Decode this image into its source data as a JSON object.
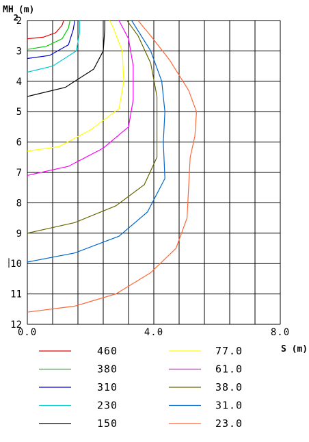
{
  "chart_data": {
    "type": "line",
    "title": "",
    "xlabel": "S(m)",
    "ylabel": "MH (m)",
    "ylabel_subscript": "2",
    "xlim": [
      0,
      8
    ],
    "ylim": [
      2,
      12
    ],
    "y_inverted": true,
    "grid": true,
    "x_ticks": [
      "0.0",
      "4.0",
      "8.0"
    ],
    "y_ticks": [
      "2",
      "3",
      "4",
      "5",
      "6",
      "7",
      "8",
      "9",
      "10",
      "11",
      "12"
    ],
    "legend_placement": "bottom",
    "series": [
      {
        "name": "460",
        "color": "#e00000",
        "points": [
          [
            0,
            2.6
          ],
          [
            0.5,
            2.55
          ],
          [
            0.9,
            2.4
          ],
          [
            1.1,
            2.15
          ],
          [
            1.15,
            2.0
          ]
        ]
      },
      {
        "name": "380",
        "color": "#00cc00",
        "points": [
          [
            0,
            2.95
          ],
          [
            0.6,
            2.85
          ],
          [
            1.1,
            2.6
          ],
          [
            1.3,
            2.25
          ],
          [
            1.35,
            2.0
          ]
        ]
      },
      {
        "name": "310",
        "color": "#0000cc",
        "points": [
          [
            0,
            3.25
          ],
          [
            0.7,
            3.15
          ],
          [
            1.3,
            2.8
          ],
          [
            1.45,
            2.3
          ],
          [
            1.5,
            2.0
          ]
        ]
      },
      {
        "name": "230",
        "color": "#00cccc",
        "points": [
          [
            0,
            3.7
          ],
          [
            0.8,
            3.5
          ],
          [
            1.55,
            3.0
          ],
          [
            1.65,
            2.4
          ],
          [
            1.65,
            2.0
          ]
        ]
      },
      {
        "name": "150",
        "color": "#000000",
        "points": [
          [
            0,
            4.5
          ],
          [
            1.2,
            4.2
          ],
          [
            2.1,
            3.6
          ],
          [
            2.4,
            3.0
          ],
          [
            2.45,
            2.3
          ],
          [
            2.45,
            2.0
          ]
        ]
      },
      {
        "name": "77.0",
        "color": "#ffff00",
        "points": [
          [
            0,
            6.3
          ],
          [
            1.0,
            6.15
          ],
          [
            2.0,
            5.6
          ],
          [
            2.9,
            4.9
          ],
          [
            3.05,
            4.0
          ],
          [
            3.0,
            3.0
          ],
          [
            2.7,
            2.2
          ],
          [
            2.6,
            2.0
          ]
        ]
      },
      {
        "name": "61.0",
        "color": "#ff00ff",
        "points": [
          [
            0,
            7.1
          ],
          [
            1.3,
            6.8
          ],
          [
            2.4,
            6.2
          ],
          [
            3.2,
            5.5
          ],
          [
            3.35,
            4.6
          ],
          [
            3.35,
            3.5
          ],
          [
            3.2,
            2.6
          ],
          [
            2.9,
            2.0
          ]
        ]
      },
      {
        "name": "38.0",
        "color": "#666600",
        "points": [
          [
            0,
            9.0
          ],
          [
            1.5,
            8.65
          ],
          [
            2.8,
            8.1
          ],
          [
            3.7,
            7.4
          ],
          [
            4.1,
            6.5
          ],
          [
            4.1,
            5.5
          ],
          [
            4.1,
            4.5
          ],
          [
            3.9,
            3.4
          ],
          [
            3.5,
            2.5
          ],
          [
            3.15,
            2.0
          ]
        ]
      },
      {
        "name": "31.0",
        "color": "#0066cc",
        "points": [
          [
            0,
            9.95
          ],
          [
            1.5,
            9.65
          ],
          [
            2.9,
            9.1
          ],
          [
            3.8,
            8.3
          ],
          [
            4.35,
            7.2
          ],
          [
            4.3,
            6.0
          ],
          [
            4.35,
            5.0
          ],
          [
            4.25,
            4.0
          ],
          [
            3.9,
            3.0
          ],
          [
            3.3,
            2.0
          ]
        ]
      },
      {
        "name": "23.0",
        "color": "#ff6633",
        "points": [
          [
            0,
            11.6
          ],
          [
            1.5,
            11.4
          ],
          [
            2.8,
            11.0
          ],
          [
            3.9,
            10.3
          ],
          [
            4.7,
            9.5
          ],
          [
            5.05,
            8.5
          ],
          [
            5.1,
            7.5
          ],
          [
            5.15,
            6.5
          ],
          [
            5.3,
            5.8
          ],
          [
            5.35,
            5.0
          ],
          [
            5.1,
            4.3
          ],
          [
            4.5,
            3.3
          ],
          [
            3.9,
            2.5
          ],
          [
            3.5,
            2.0
          ]
        ]
      }
    ]
  }
}
